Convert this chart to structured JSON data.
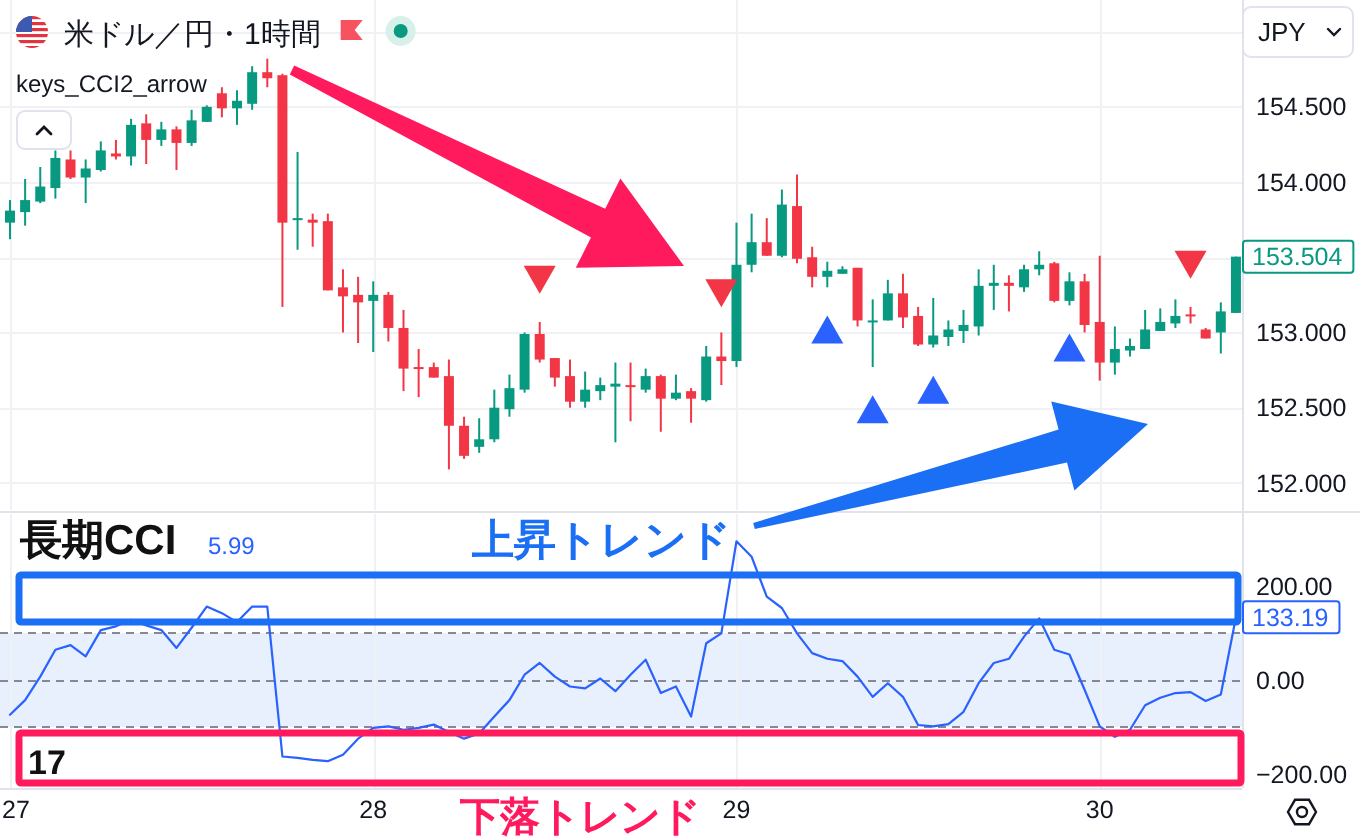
{
  "chart_data": [
    {
      "type": "candlestick",
      "title": "米ドル／円・1時間",
      "annotations": [
        "keys_CCI2_arrow",
        "JPY",
        "153.504"
      ],
      "categories": [
        "27",
        null,
        null,
        null,
        null,
        null,
        null,
        null,
        null,
        null,
        null,
        null,
        null,
        null,
        null,
        null,
        null,
        null,
        null,
        null,
        null,
        null,
        null,
        null,
        "28",
        null,
        null,
        null,
        null,
        null,
        null,
        null,
        null,
        null,
        null,
        null,
        null,
        null,
        null,
        null,
        null,
        null,
        null,
        null,
        null,
        null,
        null,
        null,
        "29",
        null,
        null,
        null,
        null,
        null,
        null,
        null,
        null,
        null,
        null,
        null,
        null,
        null,
        null,
        null,
        null,
        null,
        null,
        null,
        null,
        null,
        null,
        null,
        "30",
        null,
        null,
        null,
        null,
        null,
        null,
        null,
        null,
        null
      ],
      "ohlc": [
        [
          153.73,
          153.88,
          153.62,
          153.81
        ],
        [
          153.8,
          154.02,
          153.71,
          153.88
        ],
        [
          153.87,
          154.1,
          153.86,
          153.97
        ],
        [
          153.96,
          154.21,
          153.89,
          154.16
        ],
        [
          154.15,
          154.21,
          154.02,
          154.03
        ],
        [
          154.03,
          154.15,
          153.86,
          154.09
        ],
        [
          154.08,
          154.27,
          154.07,
          154.21
        ],
        [
          154.19,
          154.28,
          154.15,
          154.17
        ],
        [
          154.17,
          154.42,
          154.11,
          154.38
        ],
        [
          154.39,
          154.45,
          154.12,
          154.28
        ],
        [
          154.28,
          154.4,
          154.24,
          154.35
        ],
        [
          154.35,
          154.37,
          154.08,
          154.26
        ],
        [
          154.26,
          154.48,
          154.24,
          154.41
        ],
        [
          154.4,
          154.51,
          154.4,
          154.5
        ],
        [
          154.59,
          154.63,
          154.43,
          154.49
        ],
        [
          154.49,
          154.61,
          154.38,
          154.54
        ],
        [
          154.52,
          154.77,
          154.48,
          154.73
        ],
        [
          154.73,
          154.82,
          154.63,
          154.69
        ],
        [
          154.71,
          154.72,
          153.17,
          153.73
        ],
        [
          153.75,
          154.2,
          153.55,
          153.76
        ],
        [
          153.75,
          153.79,
          153.57,
          153.73
        ],
        [
          153.74,
          153.79,
          153.28,
          153.28
        ],
        [
          153.3,
          153.42,
          153.0,
          153.24
        ],
        [
          153.25,
          153.37,
          152.93,
          153.2
        ],
        [
          153.21,
          153.34,
          152.87,
          153.25
        ],
        [
          153.25,
          153.27,
          152.94,
          153.03
        ],
        [
          153.03,
          153.15,
          152.61,
          152.76
        ],
        [
          152.77,
          152.89,
          152.57,
          152.76
        ],
        [
          152.77,
          152.8,
          152.7,
          152.7
        ],
        [
          152.71,
          152.82,
          152.09,
          152.38
        ],
        [
          152.38,
          152.44,
          152.16,
          152.18
        ],
        [
          152.24,
          152.43,
          152.2,
          152.29
        ],
        [
          152.29,
          152.62,
          152.27,
          152.5
        ],
        [
          152.49,
          152.72,
          152.44,
          152.63
        ],
        [
          152.62,
          153.0,
          152.6,
          152.99
        ],
        [
          152.99,
          153.07,
          152.8,
          152.82
        ],
        [
          152.83,
          152.83,
          152.64,
          152.7
        ],
        [
          152.71,
          152.82,
          152.5,
          152.54
        ],
        [
          152.54,
          152.74,
          152.5,
          152.62
        ],
        [
          152.61,
          152.7,
          152.55,
          152.65
        ],
        [
          152.64,
          152.8,
          152.27,
          152.66
        ],
        [
          152.65,
          152.8,
          152.41,
          152.64
        ],
        [
          152.62,
          152.76,
          152.6,
          152.71
        ],
        [
          152.71,
          152.72,
          152.34,
          152.56
        ],
        [
          152.56,
          152.72,
          152.55,
          152.6
        ],
        [
          152.61,
          152.63,
          152.4,
          152.56
        ],
        [
          152.55,
          152.91,
          152.54,
          152.84
        ],
        [
          152.84,
          153.0,
          152.65,
          152.81
        ],
        [
          152.81,
          153.73,
          152.77,
          153.45
        ],
        [
          153.45,
          153.79,
          153.4,
          153.6
        ],
        [
          153.6,
          153.76,
          153.51,
          153.51
        ],
        [
          153.51,
          153.95,
          153.5,
          153.85
        ],
        [
          153.84,
          154.05,
          153.46,
          153.49
        ],
        [
          153.5,
          153.57,
          153.3,
          153.37
        ],
        [
          153.37,
          153.47,
          153.3,
          153.41
        ],
        [
          153.39,
          153.44,
          153.39,
          153.42
        ],
        [
          153.43,
          153.43,
          153.04,
          153.08
        ],
        [
          153.07,
          153.22,
          152.77,
          153.08
        ],
        [
          153.08,
          153.35,
          153.08,
          153.26
        ],
        [
          153.26,
          153.39,
          153.03,
          153.1
        ],
        [
          153.11,
          153.17,
          152.91,
          152.92
        ],
        [
          152.92,
          153.23,
          152.9,
          152.98
        ],
        [
          152.97,
          153.08,
          152.91,
          153.02
        ],
        [
          153.01,
          153.15,
          152.93,
          153.05
        ],
        [
          153.04,
          153.42,
          152.98,
          153.31
        ],
        [
          153.31,
          153.45,
          153.15,
          153.33
        ],
        [
          153.33,
          153.38,
          153.14,
          153.31
        ],
        [
          153.3,
          153.45,
          153.27,
          153.42
        ],
        [
          153.42,
          153.54,
          153.38,
          153.45
        ],
        [
          153.46,
          153.47,
          153.2,
          153.21
        ],
        [
          153.21,
          153.4,
          153.18,
          153.34
        ],
        [
          153.34,
          153.39,
          153.0,
          153.05
        ],
        [
          153.07,
          153.51,
          152.68,
          152.8
        ],
        [
          152.8,
          153.04,
          152.72,
          152.89
        ],
        [
          152.88,
          152.96,
          152.84,
          152.91
        ],
        [
          152.89,
          153.15,
          152.89,
          153.02
        ],
        [
          153.01,
          153.16,
          153.01,
          153.07
        ],
        [
          153.06,
          153.22,
          153.03,
          153.11
        ],
        [
          153.12,
          153.17,
          153.06,
          153.11
        ],
        [
          153.02,
          153.03,
          152.96,
          152.96
        ],
        [
          153.0,
          153.2,
          152.86,
          153.14
        ],
        [
          153.13,
          153.504,
          153.13,
          153.504
        ]
      ],
      "colors": [
        "#089981",
        "#089981",
        "#089981",
        "#089981",
        "#f23645",
        "#089981",
        "#089981",
        "#f23645",
        "#089981",
        "#f23645",
        "#089981",
        "#f23645",
        "#089981",
        "#089981",
        "#f23645",
        "#089981",
        "#089981",
        "#f23645",
        "#f23645",
        "#089981",
        "#f23645",
        "#f23645",
        "#f23645",
        "#f23645",
        "#089981",
        "#f23645",
        "#f23645",
        "#f23645",
        "#f23645",
        "#f23645",
        "#f23645",
        "#089981",
        "#089981",
        "#089981",
        "#089981",
        "#f23645",
        "#f23645",
        "#f23645",
        "#089981",
        "#089981",
        "#089981",
        "#f23645",
        "#089981",
        "#f23645",
        "#089981",
        "#f23645",
        "#089981",
        "#f23645",
        "#089981",
        "#089981",
        "#f23645",
        "#089981",
        "#f23645",
        "#f23645",
        "#089981",
        "#089981",
        "#f23645",
        "#089981",
        "#089981",
        "#f23645",
        "#f23645",
        "#089981",
        "#089981",
        "#089981",
        "#089981",
        "#089981",
        "#f23645",
        "#089981",
        "#089981",
        "#f23645",
        "#089981",
        "#f23645",
        "#f23645",
        "#089981",
        "#089981",
        "#089981",
        "#089981",
        "#089981",
        "#f23645",
        "#f23645",
        "#089981",
        "#089981"
      ],
      "series": [
        {
          "type": "scatter",
          "marker": "triangle-down",
          "color": "#f23645",
          "values": [
            null,
            null,
            null,
            null,
            null,
            null,
            null,
            null,
            null,
            null,
            null,
            null,
            null,
            null,
            null,
            null,
            null,
            null,
            null,
            null,
            null,
            null,
            null,
            null,
            null,
            null,
            null,
            null,
            null,
            null,
            null,
            null,
            null,
            null,
            null,
            153.35,
            null,
            null,
            null,
            null,
            null,
            null,
            null,
            null,
            null,
            null,
            null,
            153.26,
            null,
            null,
            null,
            null,
            null,
            null,
            null,
            null,
            null,
            null,
            null,
            null,
            null,
            null,
            null,
            null,
            null,
            null,
            null,
            null,
            null,
            null,
            null,
            null,
            null,
            null,
            null,
            null,
            null,
            null,
            153.45,
            null,
            null,
            null
          ]
        },
        {
          "type": "scatter",
          "marker": "triangle",
          "color": "#2962ff",
          "values": [
            null,
            null,
            null,
            null,
            null,
            null,
            null,
            null,
            null,
            null,
            null,
            null,
            null,
            null,
            null,
            null,
            null,
            null,
            null,
            null,
            null,
            null,
            null,
            null,
            null,
            null,
            null,
            null,
            null,
            null,
            null,
            null,
            null,
            null,
            null,
            null,
            null,
            null,
            null,
            null,
            null,
            null,
            null,
            null,
            null,
            null,
            null,
            null,
            null,
            null,
            null,
            null,
            null,
            null,
            153.02,
            null,
            null,
            152.49,
            null,
            null,
            null,
            152.62,
            null,
            null,
            null,
            null,
            null,
            null,
            null,
            null,
            152.9,
            null,
            null,
            null,
            null,
            null,
            null,
            null,
            null,
            null,
            null,
            null
          ]
        }
      ],
      "ylim": [
        151.82,
        155.21
      ],
      "yticks": [
        {
          "value": 155,
          "label": null
        },
        {
          "value": 154.5,
          "label": "154.500"
        },
        {
          "value": 154,
          "label": "154.000"
        },
        {
          "value": 153.5,
          "label": null
        },
        {
          "value": 153,
          "label": "153.000"
        },
        {
          "value": 152.5,
          "label": "152.500"
        },
        {
          "value": 152,
          "label": "152.000"
        }
      ],
      "grid": true,
      "tick_labels": "y"
    },
    {
      "type": "line",
      "annotations": [
        "長期CCI",
        "5.99",
        "17",
        "上昇トレンド",
        "下落トレンド",
        "133.19"
      ],
      "categories": [
        "27",
        null,
        null,
        null,
        null,
        null,
        null,
        null,
        null,
        null,
        null,
        null,
        null,
        null,
        null,
        null,
        null,
        null,
        null,
        null,
        null,
        null,
        null,
        null,
        "28",
        null,
        null,
        null,
        null,
        null,
        null,
        null,
        null,
        null,
        null,
        null,
        null,
        null,
        null,
        null,
        null,
        null,
        null,
        null,
        null,
        null,
        null,
        null,
        "29",
        null,
        null,
        null,
        null,
        null,
        null,
        null,
        null,
        null,
        null,
        null,
        null,
        null,
        null,
        null,
        null,
        null,
        null,
        null,
        null,
        null,
        null,
        null,
        "30",
        null,
        null,
        null,
        null,
        null,
        null,
        null,
        null,
        null
      ],
      "values": [
        -74,
        -43,
        7,
        64,
        74,
        50,
        106,
        114,
        128,
        116,
        106,
        68,
        111,
        156,
        142,
        123,
        156,
        156,
        -163,
        -166,
        -170,
        -173,
        -159,
        -125,
        -102,
        -99,
        -106,
        -102,
        -95,
        -111,
        -125,
        -114,
        -78,
        -43,
        11,
        36,
        7,
        -14,
        -18,
        3,
        -24,
        11,
        43,
        -28,
        -14,
        -78,
        78,
        99,
        295,
        262,
        177,
        153,
        99,
        57,
        45,
        40,
        7,
        -36,
        -7,
        -36,
        -96,
        -99,
        -94,
        -68,
        -7,
        36,
        45,
        92,
        131,
        64,
        54,
        -21,
        -99,
        -121,
        -106,
        -54,
        -38,
        -28,
        -26,
        -45,
        -31,
        133.19
      ],
      "color": "#2962ff",
      "ylim": [
        -230,
        353
      ],
      "yticks": [
        {
          "value": 200,
          "label": "200.00"
        },
        {
          "value": 0,
          "label": "0.00"
        },
        {
          "value": -200,
          "label": "−200.00"
        }
      ],
      "bands": [
        {
          "axis": "y",
          "from": -100,
          "to": 100,
          "color": "#e8f0fe"
        }
      ],
      "ref_lines": [
        {
          "axis": "y",
          "value": 100,
          "line_style": "dashed",
          "color": "#868993"
        },
        {
          "axis": "y",
          "value": 0,
          "line_style": "dashed",
          "color": "#868993"
        },
        {
          "axis": "y",
          "value": -100,
          "line_style": "dashed",
          "color": "#868993"
        }
      ],
      "grid": "x"
    }
  ]
}
